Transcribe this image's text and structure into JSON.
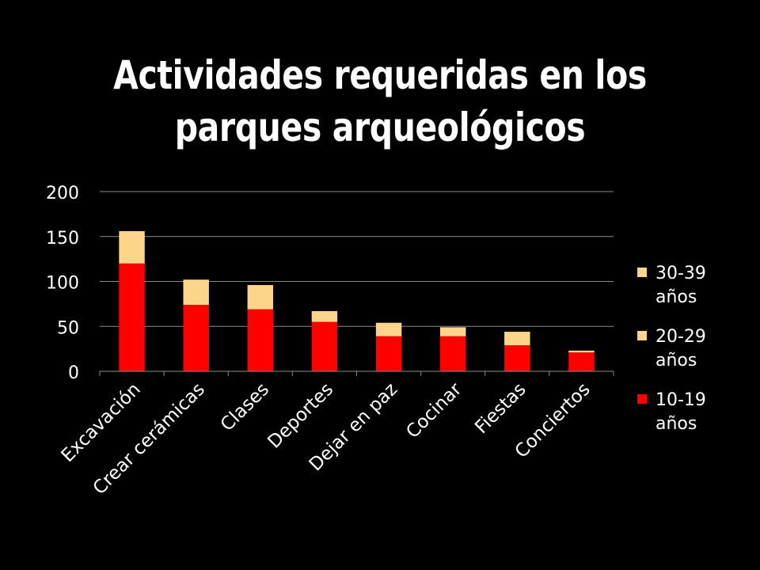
{
  "slide": {
    "title_line1": "Actividades requeridas en los",
    "title_line2": "parques arqueológicos"
  },
  "chart_data": {
    "type": "bar",
    "stacked": true,
    "categories": [
      "Excavación",
      "Crear cerámicas",
      "Clases",
      "Deportes",
      "Dejar en paz",
      "Cocinar",
      "Fiestas",
      "Conciertos"
    ],
    "series": [
      {
        "name": "10-19 años",
        "color": "#ff0000",
        "values": [
          120,
          74,
          69,
          55,
          39,
          39,
          29,
          21
        ]
      },
      {
        "name": "20-29 años",
        "color": "#fcd58a",
        "values": [
          36,
          28,
          27,
          12,
          15,
          10,
          15,
          2
        ]
      },
      {
        "name": "30-39 años",
        "color": "#fcd58a",
        "values": [
          0,
          0,
          0,
          0,
          0,
          0,
          0,
          0
        ]
      }
    ],
    "legend_order": [
      "30-39 años",
      "20-29 años",
      "10-19 años"
    ],
    "yticks": [
      0,
      50,
      100,
      150,
      200
    ],
    "ylim": [
      0,
      200
    ],
    "grid": true,
    "legend_position": "right",
    "xlabel": "",
    "ylabel": "",
    "title": ""
  }
}
